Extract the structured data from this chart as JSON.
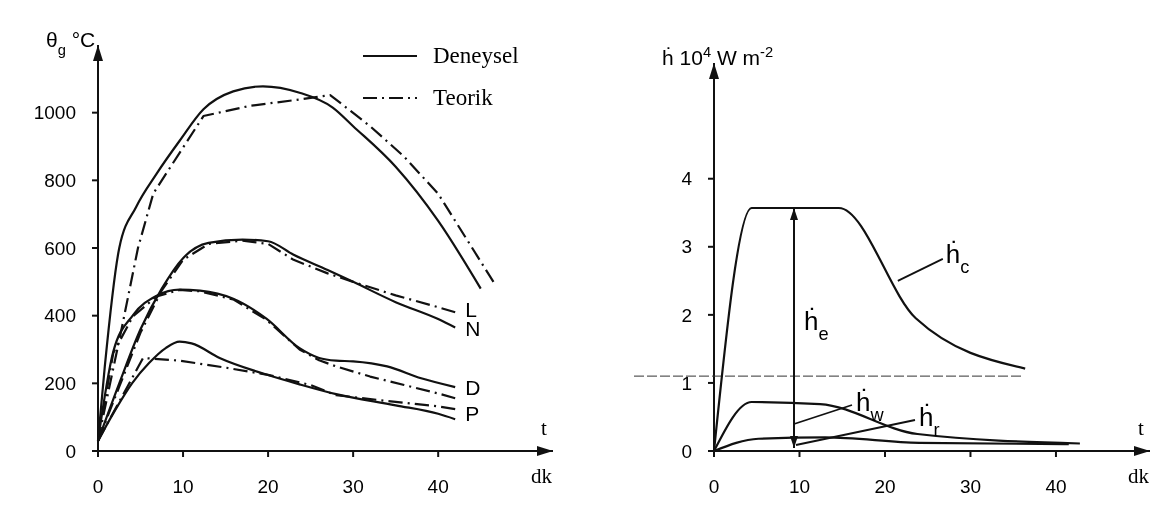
{
  "chart_data": [
    {
      "type": "line",
      "ylabel": "θ$_{g}$    °C",
      "xlabel": "dk",
      "xlim": [
        0,
        53.5
      ],
      "ylim": [
        0,
        1200
      ],
      "xticks": [
        0,
        10,
        20,
        30,
        40
      ],
      "yticks": [
        0,
        200,
        400,
        600,
        800,
        1000
      ],
      "legend": "top right",
      "series": [
        {
          "name": "Deneysel",
          "color": "#111111",
          "line_style": "solid",
          "x": [
            0,
            0.8,
            2.5,
            4.5,
            6.9,
            9.6,
            12.4,
            15.9,
            19.4,
            23.7,
            27.6,
            30,
            35,
            40,
            45
          ],
          "values": [
            30,
            250,
            600,
            722,
            820,
            917,
            1010,
            1063,
            1078,
            1059,
            1015,
            960,
            840,
            680,
            480
          ]
        },
        {
          "name": "Teorik",
          "color": "#111111",
          "line_style": "dashed",
          "x": [
            0,
            2.7,
            4.7,
            6.5,
            12.4,
            17.8,
            23.7,
            27.3,
            32,
            36,
            40,
            44,
            46.5
          ],
          "values": [
            30,
            352,
            600,
            761,
            990,
            1020,
            1039,
            1052,
            960,
            870,
            760,
            600,
            500
          ]
        },
        {
          "color": "#111111",
          "line_style": "solid",
          "x": [
            0,
            2.5,
            5,
            7.5,
            10,
            13,
            17,
            20,
            23,
            27,
            30,
            35,
            40,
            42
          ],
          "values": [
            30,
            200,
            360,
            480,
            570,
            615,
            625,
            620,
            580,
            535,
            500,
            440,
            390,
            365
          ]
        },
        {
          "color": "#111111",
          "line_style": "dashed",
          "x": [
            0,
            2.5,
            5,
            7.5,
            10,
            13,
            17,
            20,
            23,
            27,
            30,
            35,
            40,
            42
          ],
          "values": [
            30,
            190,
            350,
            475,
            565,
            612,
            622,
            612,
            565,
            525,
            500,
            460,
            425,
            410
          ]
        },
        {
          "color": "#111111",
          "line_style": "solid",
          "x": [
            0,
            1.8,
            4.1,
            6.9,
            9.6,
            12,
            15.9,
            19.8,
            23.7,
            26,
            28,
            30,
            34,
            38,
            42
          ],
          "values": [
            30,
            294,
            401,
            459,
            477,
            474,
            450,
            391,
            304,
            275,
            267,
            265,
            250,
            215,
            189
          ]
        },
        {
          "color": "#111111",
          "line_style": "dashed",
          "x": [
            0,
            1.8,
            4.1,
            6.9,
            9.6,
            12,
            15.9,
            19.8,
            23.7,
            26,
            28,
            32,
            36,
            40,
            42
          ],
          "values": [
            30,
            290,
            398,
            457,
            476,
            472,
            448,
            388,
            300,
            268,
            250,
            220,
            195,
            170,
            156
          ]
        },
        {
          "color": "#111111",
          "line_style": "solid",
          "x": [
            0,
            2,
            4,
            6,
            8,
            9.6,
            11,
            14.3,
            19.8,
            23.7,
            28,
            35,
            40,
            42
          ],
          "values": [
            30,
            120,
            200,
            260,
            305,
            323,
            318,
            275,
            226,
            197,
            168,
            135,
            110,
            94
          ]
        },
        {
          "color": "#111111",
          "line_style": "dashed",
          "x": [
            0,
            5.3,
            9.6,
            15.1,
            20,
            25,
            28,
            35,
            40,
            42
          ],
          "values": [
            30,
            275,
            267,
            246,
            225,
            195,
            165,
            145,
            132,
            124
          ]
        }
      ],
      "annotations": [
        "t",
        "L",
        "N",
        "D",
        "P"
      ]
    },
    {
      "type": "line",
      "ylabel": "ḣ 10$^{4}$ W m$^{-2}$",
      "xlabel": "dk",
      "xlim": [
        0,
        51
      ],
      "ylim": [
        0,
        5.7
      ],
      "xticks": [
        0,
        10,
        20,
        30,
        40
      ],
      "yticks": [
        0,
        1,
        2,
        3,
        4
      ],
      "series": [
        {
          "color": "#111111",
          "line_style": "solid",
          "x": [
            0,
            4.4,
            14.6,
            23.6,
            36.4
          ],
          "values": [
            0,
            3.57,
            3.57,
            1.95,
            1.21
          ]
        },
        {
          "color": "#111111",
          "line_style": "solid",
          "x": [
            0,
            4.4,
            12.4,
            23.8,
            42.8
          ],
          "values": [
            0,
            0.72,
            0.69,
            0.25,
            0.11
          ]
        },
        {
          "color": "#111111",
          "line_style": "solid",
          "x": [
            0,
            5.2,
            13,
            24,
            41.5
          ],
          "values": [
            0,
            0.18,
            0.2,
            0.12,
            0.1
          ]
        }
      ],
      "ref_lines": [
        {
          "axis": "y",
          "value": 1.1,
          "color": "#333333",
          "line_style": "dashed"
        }
      ],
      "annotations": [
        "ḣ$_{e}$",
        {
          "text": "ḣ$_{c}$",
          "x": 21.5,
          "y": 2.5
        },
        "ḣ$_{w}$",
        "ḣ$_{r}$",
        "t"
      ]
    }
  ]
}
